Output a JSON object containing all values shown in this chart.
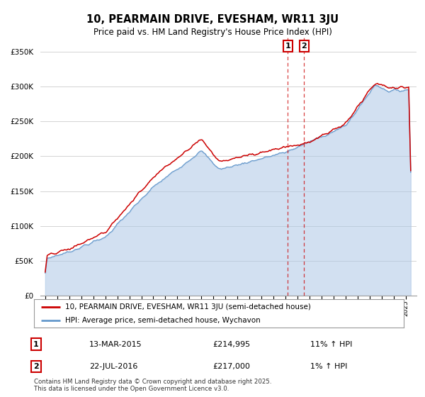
{
  "title": "10, PEARMAIN DRIVE, EVESHAM, WR11 3JU",
  "subtitle": "Price paid vs. HM Land Registry's House Price Index (HPI)",
  "legend_line1": "10, PEARMAIN DRIVE, EVESHAM, WR11 3JU (semi-detached house)",
  "legend_line2": "HPI: Average price, semi-detached house, Wychavon",
  "footer": "Contains HM Land Registry data © Crown copyright and database right 2025.\nThis data is licensed under the Open Government Licence v3.0.",
  "table_rows": [
    {
      "num": "1",
      "date": "13-MAR-2015",
      "price": "£214,995",
      "change": "11% ↑ HPI"
    },
    {
      "num": "2",
      "date": "22-JUL-2016",
      "price": "£217,000",
      "change": "1% ↑ HPI"
    }
  ],
  "sale1_year": 2015.2,
  "sale2_year": 2016.55,
  "hpi_color": "#6699cc",
  "hpi_fill_color": "#adc8e6",
  "price_color": "#cc0000",
  "marker_color": "#cc0000",
  "background_color": "#ffffff",
  "grid_color": "#cccccc",
  "ylim": [
    0,
    370000
  ],
  "yticks": [
    0,
    50000,
    100000,
    150000,
    200000,
    250000,
    300000,
    350000
  ],
  "ytick_labels": [
    "£0",
    "£50K",
    "£100K",
    "£150K",
    "£200K",
    "£250K",
    "£300K",
    "£350K"
  ],
  "x_start_year": 1995,
  "x_end_year": 2025
}
